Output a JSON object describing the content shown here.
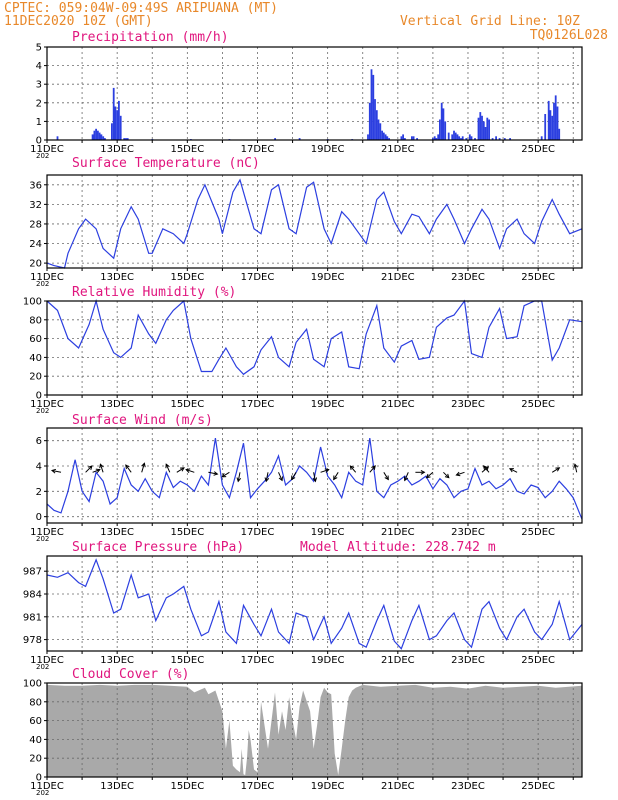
{
  "header": {
    "line1": "CPTEC:   059:04W-09:49S   ARIPUANA (MT)",
    "line2": "11DEC2020 10Z (GMT)",
    "grid_note": "Vertical Grid Line: 10Z",
    "code": "TQ0126L028"
  },
  "year_stub": "202",
  "model_altitude": "Model Altitude: 228.742 m",
  "colors": {
    "header": "#e8882a",
    "title": "#e0157e",
    "series": "#2c3fe0",
    "cloud": "#a9a9a9",
    "arrow": "#000000"
  },
  "chart_data": [
    {
      "type": "bar",
      "title": "Precipitation (mm/h)",
      "xlabels": [
        "11DEC",
        "13DEC",
        "15DEC",
        "17DEC",
        "19DEC",
        "21DEC",
        "23DEC",
        "25DEC"
      ],
      "xlim": [
        0,
        15.25
      ],
      "ylim": [
        0,
        5
      ],
      "yticks": [
        0,
        1,
        2,
        3,
        4,
        5
      ],
      "grid": true,
      "x": [
        0.3,
        1.3,
        1.35,
        1.4,
        1.45,
        1.5,
        1.55,
        1.6,
        1.65,
        1.85,
        1.9,
        1.95,
        2.0,
        2.05,
        2.1,
        2.2,
        2.25,
        2.3,
        3.0,
        4.1,
        5.2,
        6.5,
        7.2,
        8.0,
        8.7,
        9.15,
        9.2,
        9.25,
        9.3,
        9.35,
        9.4,
        9.45,
        9.5,
        9.55,
        9.6,
        9.65,
        9.7,
        9.75,
        10.1,
        10.15,
        10.2,
        10.4,
        10.45,
        10.55,
        11.0,
        11.05,
        11.1,
        11.15,
        11.2,
        11.25,
        11.3,
        11.35,
        11.45,
        11.55,
        11.6,
        11.65,
        11.7,
        11.75,
        11.8,
        11.85,
        11.95,
        12.05,
        12.1,
        12.2,
        12.3,
        12.35,
        12.4,
        12.45,
        12.5,
        12.55,
        12.6,
        12.7,
        12.8,
        12.9,
        13.05,
        13.2,
        14.1,
        14.2,
        14.3,
        14.35,
        14.4,
        14.45,
        14.5,
        14.55,
        14.6
      ],
      "values": [
        0.2,
        0.3,
        0.5,
        0.6,
        0.5,
        0.4,
        0.3,
        0.2,
        0.1,
        0.9,
        2.8,
        1.8,
        1.6,
        2.1,
        1.3,
        0.1,
        0.1,
        0.1,
        0.05,
        0.05,
        0.05,
        0.1,
        0.1,
        0.05,
        0.05,
        0.3,
        2.0,
        3.8,
        3.5,
        2.2,
        1.6,
        1.1,
        0.9,
        0.5,
        0.4,
        0.3,
        0.2,
        0.1,
        0.2,
        0.3,
        0.1,
        0.2,
        0.2,
        0.1,
        0.1,
        0.2,
        0.1,
        0.3,
        1.1,
        2.0,
        1.7,
        1.0,
        0.4,
        0.3,
        0.5,
        0.4,
        0.3,
        0.2,
        0.1,
        0.2,
        0.1,
        0.3,
        0.2,
        0.1,
        1.2,
        1.5,
        1.3,
        1.0,
        0.7,
        1.2,
        1.1,
        0.1,
        0.2,
        0.1,
        0.1,
        0.1,
        0.2,
        1.4,
        2.1,
        1.6,
        1.3,
        2.0,
        2.4,
        1.8,
        0.6
      ]
    },
    {
      "type": "line",
      "title": "Surface Temperature (nC)",
      "xlabels": [
        "11DEC",
        "13DEC",
        "15DEC",
        "17DEC",
        "19DEC",
        "21DEC",
        "23DEC",
        "25DEC"
      ],
      "xlim": [
        0,
        15.25
      ],
      "ylim": [
        19,
        38
      ],
      "yticks": [
        20,
        24,
        28,
        32,
        36
      ],
      "grid": true,
      "x": [
        0,
        0.2,
        0.5,
        0.6,
        0.9,
        1.1,
        1.4,
        1.6,
        1.9,
        2.1,
        2.4,
        2.6,
        2.9,
        3.0,
        3.3,
        3.6,
        3.9,
        4.0,
        4.3,
        4.5,
        4.9,
        5.0,
        5.3,
        5.5,
        5.9,
        6.1,
        6.4,
        6.6,
        6.9,
        7.1,
        7.4,
        7.6,
        7.9,
        8.1,
        8.4,
        8.6,
        8.9,
        9.1,
        9.4,
        9.6,
        9.9,
        10.1,
        10.4,
        10.6,
        10.9,
        11.1,
        11.4,
        11.6,
        11.9,
        12.1,
        12.4,
        12.6,
        12.9,
        13.1,
        13.4,
        13.6,
        13.9,
        14.1,
        14.4,
        14.6,
        14.9,
        15.25
      ],
      "values": [
        20,
        19.5,
        19,
        22,
        27,
        29,
        27,
        23,
        21,
        27,
        31.5,
        29,
        22,
        22,
        27,
        26,
        24,
        26,
        33,
        36,
        29,
        26,
        34.5,
        37,
        27,
        26,
        35,
        36,
        27,
        26,
        35.5,
        36.5,
        27,
        24,
        30.5,
        29,
        26,
        24,
        33,
        34.5,
        28.5,
        26,
        30,
        29.5,
        26,
        29,
        32,
        29,
        24,
        27,
        31,
        29,
        23,
        27,
        29,
        26,
        24,
        28.5,
        33,
        30,
        26,
        27
      ]
    },
    {
      "type": "line",
      "title": "Relative Humidity (%)",
      "xlabels": [
        "11DEC",
        "13DEC",
        "15DEC",
        "17DEC",
        "19DEC",
        "21DEC",
        "23DEC",
        "25DEC"
      ],
      "xlim": [
        0,
        15.25
      ],
      "ylim": [
        0,
        100
      ],
      "yticks": [
        0,
        20,
        40,
        60,
        80,
        100
      ],
      "grid": true,
      "x": [
        0,
        0.3,
        0.6,
        0.9,
        1.2,
        1.4,
        1.6,
        1.9,
        2.1,
        2.4,
        2.6,
        2.9,
        3.1,
        3.4,
        3.6,
        3.9,
        4.1,
        4.4,
        4.7,
        4.9,
        5.1,
        5.4,
        5.6,
        5.9,
        6.1,
        6.4,
        6.6,
        6.9,
        7.1,
        7.4,
        7.6,
        7.9,
        8.1,
        8.4,
        8.6,
        8.9,
        9.1,
        9.4,
        9.6,
        9.9,
        10.1,
        10.4,
        10.6,
        10.9,
        11.1,
        11.4,
        11.6,
        11.9,
        12.1,
        12.4,
        12.6,
        12.9,
        13.1,
        13.4,
        13.6,
        13.9,
        14.1,
        14.4,
        14.6,
        14.9,
        15.25
      ],
      "values": [
        100,
        90,
        60,
        50,
        75,
        100,
        70,
        45,
        40,
        50,
        85,
        65,
        55,
        80,
        90,
        100,
        60,
        25,
        25,
        38,
        50,
        30,
        22,
        30,
        48,
        62,
        40,
        30,
        56,
        70,
        38,
        30,
        60,
        67,
        30,
        28,
        65,
        95,
        50,
        35,
        52,
        58,
        38,
        40,
        72,
        82,
        85,
        100,
        44,
        40,
        72,
        92,
        60,
        62,
        95,
        100,
        100,
        37,
        50,
        80,
        78
      ]
    },
    {
      "type": "line",
      "title": "Surface Wind (m/s)",
      "xlabels": [
        "11DEC",
        "13DEC",
        "15DEC",
        "17DEC",
        "19DEC",
        "21DEC",
        "23DEC",
        "25DEC"
      ],
      "xlim": [
        0,
        15.25
      ],
      "ylim": [
        -0.5,
        7
      ],
      "yticks": [
        0,
        2,
        4,
        6
      ],
      "grid": true,
      "x": [
        0,
        0.2,
        0.4,
        0.6,
        0.8,
        1.0,
        1.2,
        1.4,
        1.6,
        1.8,
        2.0,
        2.2,
        2.4,
        2.6,
        2.8,
        3.0,
        3.2,
        3.4,
        3.6,
        3.8,
        4.0,
        4.2,
        4.4,
        4.6,
        4.8,
        5.0,
        5.2,
        5.4,
        5.6,
        5.8,
        6.0,
        6.2,
        6.4,
        6.6,
        6.8,
        7.0,
        7.2,
        7.4,
        7.6,
        7.8,
        8.0,
        8.2,
        8.4,
        8.6,
        8.8,
        9.0,
        9.2,
        9.4,
        9.6,
        9.8,
        10.0,
        10.2,
        10.4,
        10.6,
        10.8,
        11.0,
        11.2,
        11.4,
        11.6,
        11.8,
        12.0,
        12.2,
        12.4,
        12.6,
        12.8,
        13.0,
        13.2,
        13.4,
        13.6,
        13.8,
        14.0,
        14.2,
        14.4,
        14.6,
        14.8,
        15.0,
        15.25
      ],
      "values": [
        1,
        0.5,
        0.3,
        2,
        4.5,
        2,
        1.2,
        3.5,
        2.8,
        1,
        1.5,
        3.8,
        2.5,
        2,
        3,
        2,
        1.5,
        3.5,
        2.3,
        2.8,
        2.5,
        2,
        3.2,
        2.5,
        6.2,
        2.5,
        1.5,
        3.5,
        5.8,
        1.5,
        2.2,
        2.8,
        3.5,
        4.8,
        2.5,
        3,
        4,
        3.5,
        2.8,
        5.5,
        3.2,
        2.5,
        1.5,
        3.5,
        2.8,
        2.5,
        6.2,
        2,
        1.5,
        2.5,
        2.8,
        3.2,
        2.5,
        2.8,
        3.2,
        2.2,
        3,
        2.5,
        1.5,
        2,
        2.2,
        3.8,
        2.5,
        2.8,
        2.2,
        2.5,
        3,
        2,
        1.8,
        2.5,
        2.3,
        1.5,
        2,
        2.8,
        2.2,
        1.5,
        -0.2
      ]
    },
    {
      "type": "line",
      "title": "Surface Pressure (hPa)",
      "xlabels": [
        "11DEC",
        "13DEC",
        "15DEC",
        "17DEC",
        "19DEC",
        "21DEC",
        "23DEC",
        "25DEC"
      ],
      "xlim": [
        0,
        15.25
      ],
      "ylim": [
        976.5,
        989
      ],
      "yticks": [
        978,
        981,
        984,
        987
      ],
      "grid": true,
      "x": [
        0,
        0.3,
        0.6,
        0.9,
        1.1,
        1.4,
        1.6,
        1.9,
        2.1,
        2.4,
        2.6,
        2.9,
        3.1,
        3.4,
        3.6,
        3.9,
        4.1,
        4.4,
        4.6,
        4.9,
        5.1,
        5.4,
        5.6,
        5.9,
        6.1,
        6.4,
        6.6,
        6.9,
        7.1,
        7.4,
        7.6,
        7.9,
        8.1,
        8.4,
        8.6,
        8.9,
        9.1,
        9.4,
        9.6,
        9.9,
        10.1,
        10.4,
        10.6,
        10.9,
        11.1,
        11.4,
        11.6,
        11.9,
        12.1,
        12.4,
        12.6,
        12.9,
        13.1,
        13.4,
        13.6,
        13.9,
        14.1,
        14.4,
        14.6,
        14.9,
        15.25
      ],
      "values": [
        986.5,
        986.2,
        986.8,
        985.5,
        985,
        988.5,
        986,
        981.5,
        982,
        986.5,
        983.5,
        984,
        980.5,
        983.5,
        984,
        985,
        982,
        978.5,
        979,
        983,
        979,
        977.5,
        982.5,
        980,
        978.5,
        982,
        979,
        977.5,
        981.5,
        981,
        978,
        981,
        977.5,
        979.5,
        981.5,
        977.5,
        977,
        980.5,
        982.5,
        977.8,
        976.8,
        980.5,
        982.5,
        978,
        978.5,
        980.5,
        981.5,
        978,
        977,
        982,
        983,
        979.5,
        978,
        981,
        982,
        979,
        978,
        980,
        983,
        978,
        980
      ]
    },
    {
      "type": "area",
      "title": "Cloud Cover (%)",
      "xlabels": [
        "11DEC",
        "13DEC",
        "15DEC",
        "17DEC",
        "19DEC",
        "21DEC",
        "23DEC",
        "25DEC"
      ],
      "xlim": [
        0,
        15.25
      ],
      "ylim": [
        0,
        100
      ],
      "yticks": [
        0,
        20,
        40,
        60,
        80,
        100
      ],
      "grid": true,
      "x": [
        0,
        0.5,
        1.0,
        1.5,
        2.0,
        2.5,
        3.0,
        3.5,
        4.0,
        4.2,
        4.5,
        4.6,
        4.8,
        5.0,
        5.1,
        5.2,
        5.3,
        5.4,
        5.5,
        5.55,
        5.6,
        5.65,
        5.7,
        5.75,
        5.8,
        5.9,
        6.0,
        6.05,
        6.1,
        6.2,
        6.3,
        6.4,
        6.5,
        6.6,
        6.7,
        6.8,
        6.9,
        7.0,
        7.1,
        7.2,
        7.3,
        7.5,
        7.6,
        7.7,
        7.8,
        7.9,
        8.0,
        8.1,
        8.2,
        8.3,
        8.4,
        8.5,
        8.6,
        8.7,
        8.8,
        9.0,
        9.5,
        10.0,
        10.5,
        11.0,
        11.5,
        12.0,
        12.5,
        13.0,
        13.5,
        14.0,
        14.5,
        15.25
      ],
      "values": [
        98,
        97,
        97,
        98,
        97,
        98,
        98,
        97,
        96,
        90,
        95,
        88,
        92,
        70,
        30,
        60,
        12,
        8,
        5,
        30,
        3,
        2,
        20,
        50,
        40,
        8,
        5,
        40,
        80,
        55,
        30,
        60,
        90,
        45,
        70,
        50,
        85,
        60,
        40,
        75,
        92,
        70,
        30,
        55,
        85,
        95,
        90,
        88,
        25,
        2,
        30,
        60,
        85,
        92,
        95,
        98,
        96,
        97,
        98,
        95,
        96,
        94,
        97,
        95,
        96,
        97,
        95,
        97
      ]
    }
  ],
  "wind_arrows": [
    {
      "x": 0.4,
      "u": -1,
      "v": 0.2
    },
    {
      "x": 1.1,
      "u": 0.7,
      "v": 0.7
    },
    {
      "x": 1.3,
      "u": 0.8,
      "v": 0.3
    },
    {
      "x": 1.6,
      "u": -0.3,
      "v": 0.9
    },
    {
      "x": 2.4,
      "u": -0.6,
      "v": 0.8
    },
    {
      "x": 2.7,
      "u": 0.3,
      "v": 1
    },
    {
      "x": 3.5,
      "u": -0.4,
      "v": 0.9
    },
    {
      "x": 3.7,
      "u": 0.8,
      "v": 0.5
    },
    {
      "x": 4.2,
      "u": -0.9,
      "v": 0.3
    },
    {
      "x": 4.6,
      "u": 1,
      "v": -0.2
    },
    {
      "x": 5.2,
      "u": -0.8,
      "v": -0.5
    },
    {
      "x": 5.5,
      "u": -0.2,
      "v": -1
    },
    {
      "x": 6.3,
      "u": -0.2,
      "v": -1
    },
    {
      "x": 6.6,
      "u": 0.4,
      "v": -0.9
    },
    {
      "x": 7.1,
      "u": -0.5,
      "v": -0.8
    },
    {
      "x": 7.6,
      "u": 0.2,
      "v": -1
    },
    {
      "x": 7.8,
      "u": 0.9,
      "v": 0.3
    },
    {
      "x": 8.3,
      "u": -0.5,
      "v": -0.8
    },
    {
      "x": 8.8,
      "u": -0.6,
      "v": 0.7
    },
    {
      "x": 9.2,
      "u": 0.6,
      "v": 0.7
    },
    {
      "x": 9.6,
      "u": 0.5,
      "v": -0.8
    },
    {
      "x": 10.3,
      "u": -0.4,
      "v": -0.9
    },
    {
      "x": 10.5,
      "u": 1,
      "v": 0
    },
    {
      "x": 11.0,
      "u": -0.7,
      "v": -0.6
    },
    {
      "x": 11.3,
      "u": 0.6,
      "v": -0.6
    },
    {
      "x": 11.9,
      "u": -0.9,
      "v": -0.3
    },
    {
      "x": 12.4,
      "u": 0.7,
      "v": 0.6
    },
    {
      "x": 12.6,
      "u": -0.6,
      "v": 0.7
    },
    {
      "x": 13.4,
      "u": -0.8,
      "v": 0.4
    },
    {
      "x": 14.4,
      "u": 0.8,
      "v": 0.5
    },
    {
      "x": 15.1,
      "u": -0.2,
      "v": 0.9
    }
  ]
}
